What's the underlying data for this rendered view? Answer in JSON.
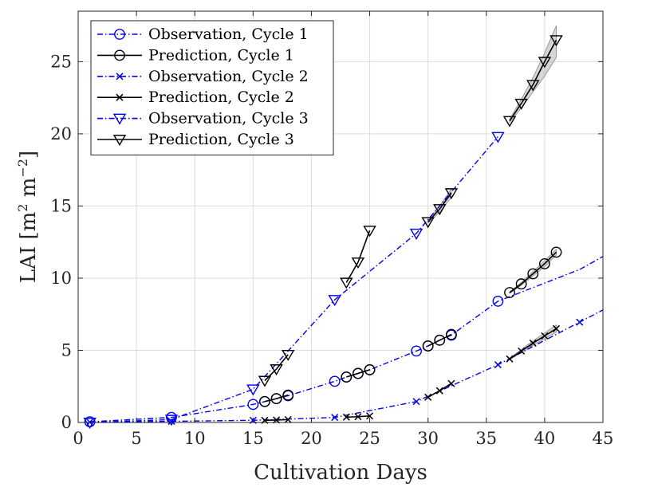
{
  "chart_data": {
    "type": "line",
    "xlabel": "Cultivation Days",
    "ylabel_parts": {
      "prefix": "LAI [m",
      "sup1": "2",
      "mid": " m",
      "sup2": "−2",
      "suffix": "]"
    },
    "xlim": [
      0,
      45
    ],
    "ylim": [
      0,
      28.5
    ],
    "xticks": [
      "0",
      "5",
      "10",
      "15",
      "20",
      "25",
      "30",
      "35",
      "40",
      "45"
    ],
    "yticks": [
      "0",
      "5",
      "10",
      "15",
      "20",
      "25"
    ],
    "grid": true,
    "legend_position": "top-left",
    "series": [
      {
        "name": "Observation, Cycle 1",
        "color": "#0000ee",
        "marker": "circle",
        "line": "dashdot",
        "x": [
          1,
          8,
          15,
          16,
          17,
          18,
          22,
          23,
          24,
          25,
          29,
          30,
          31,
          32,
          36,
          43,
          45
        ],
        "y": [
          0.05,
          0.35,
          1.25,
          1.45,
          1.65,
          1.85,
          2.85,
          3.15,
          3.4,
          3.65,
          4.95,
          5.3,
          5.7,
          6.05,
          8.4,
          10.6,
          11.5
        ],
        "marker_x": [
          1,
          8,
          15,
          16,
          17,
          18,
          22,
          23,
          24,
          25,
          29,
          30,
          31,
          32,
          36
        ]
      },
      {
        "name": "Prediction, Cycle 1",
        "color": "#000000",
        "marker": "circle",
        "line": "solid",
        "segments": [
          {
            "x": [
              16,
              17,
              18
            ],
            "y": [
              1.45,
              1.65,
              1.9
            ]
          },
          {
            "x": [
              23,
              24,
              25
            ],
            "y": [
              3.15,
              3.4,
              3.65
            ]
          },
          {
            "x": [
              30,
              31,
              32
            ],
            "y": [
              5.3,
              5.7,
              6.1
            ]
          },
          {
            "x": [
              37,
              38,
              39,
              40,
              41
            ],
            "y": [
              9.0,
              9.6,
              10.3,
              11.0,
              11.8
            ]
          }
        ]
      },
      {
        "name": "Observation, Cycle 2",
        "color": "#0000ee",
        "marker": "x",
        "line": "dashdot",
        "x": [
          1,
          8,
          15,
          22,
          29,
          36,
          43,
          45
        ],
        "y": [
          0.02,
          0.08,
          0.15,
          0.35,
          1.45,
          4.0,
          6.95,
          7.8
        ],
        "marker_x": [
          1,
          8,
          15,
          22,
          29,
          36,
          43
        ]
      },
      {
        "name": "Prediction, Cycle 2",
        "color": "#000000",
        "marker": "x",
        "line": "solid",
        "segments": [
          {
            "x": [
              16,
              17,
              18
            ],
            "y": [
              0.15,
              0.17,
              0.2
            ]
          },
          {
            "x": [
              23,
              24,
              25
            ],
            "y": [
              0.37,
              0.4,
              0.45
            ]
          },
          {
            "x": [
              30,
              31,
              32
            ],
            "y": [
              1.75,
              2.2,
              2.7
            ]
          },
          {
            "x": [
              37,
              38,
              39,
              40,
              41
            ],
            "y": [
              4.4,
              4.95,
              5.5,
              6.0,
              6.5
            ]
          }
        ]
      },
      {
        "name": "Observation, Cycle 3",
        "color": "#0000ee",
        "marker": "triangle-down",
        "line": "dashdot",
        "x": [
          1,
          8,
          15,
          22,
          29,
          36
        ],
        "y": [
          0.0,
          0.2,
          2.3,
          8.5,
          13.1,
          19.8
        ],
        "marker_x": [
          1,
          8,
          15,
          22,
          29,
          36
        ]
      },
      {
        "name": "Prediction, Cycle 3",
        "color": "#000000",
        "marker": "triangle-down",
        "line": "solid",
        "segments": [
          {
            "x": [
              16,
              17,
              18
            ],
            "y": [
              2.9,
              3.7,
              4.7
            ]
          },
          {
            "x": [
              23,
              24,
              25
            ],
            "y": [
              9.7,
              11.1,
              13.3
            ]
          },
          {
            "x": [
              30,
              31,
              32
            ],
            "y": [
              13.9,
              14.8,
              15.9
            ]
          },
          {
            "x": [
              37,
              38,
              39,
              40,
              41
            ],
            "y": [
              20.9,
              22.1,
              23.4,
              25.0,
              26.5
            ]
          }
        ]
      }
    ],
    "uncertainty_bands": [
      {
        "x": [
          37,
          38,
          39,
          40,
          41
        ],
        "low": [
          20.8,
          21.8,
          22.9,
          24.0,
          25.3
        ],
        "high": [
          21.0,
          22.4,
          23.9,
          25.6,
          27.5
        ]
      },
      {
        "x": [
          37,
          38,
          39,
          40,
          41
        ],
        "low": [
          4.35,
          4.85,
          5.35,
          5.8,
          6.25
        ],
        "high": [
          4.45,
          5.05,
          5.65,
          6.2,
          6.75
        ]
      },
      {
        "x": [
          37,
          38,
          39,
          40,
          41
        ],
        "low": [
          8.95,
          9.5,
          10.15,
          10.8,
          11.6
        ],
        "high": [
          9.05,
          9.7,
          10.45,
          11.2,
          12.0
        ]
      },
      {
        "x": [
          30,
          31,
          32
        ],
        "low": [
          13.8,
          14.6,
          15.6
        ],
        "high": [
          14.0,
          15.0,
          16.2
        ]
      }
    ]
  }
}
